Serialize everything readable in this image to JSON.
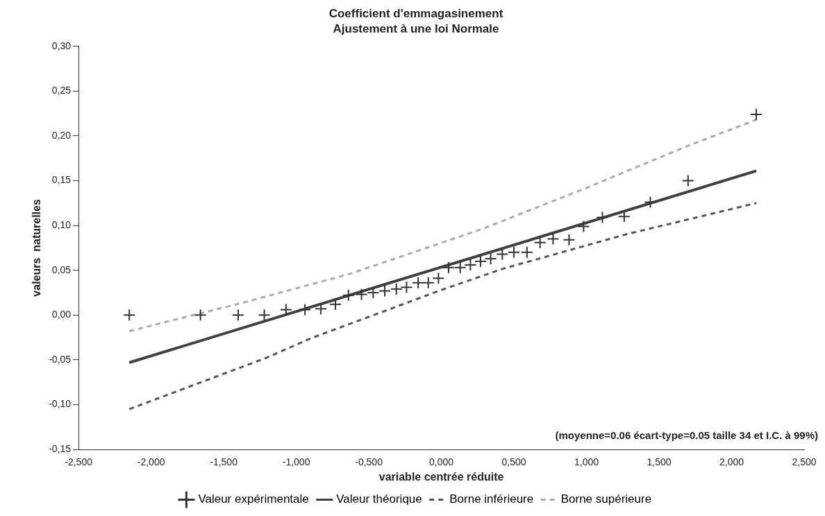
{
  "chart_data": {
    "type": "scatter",
    "title": "Coefficient d'emmagasinement",
    "subtitle": "Ajustement à une loi Normale",
    "xlabel": "variable centrée réduite",
    "ylabel": "valeurs  naturelles",
    "annotations": [
      "(moyenne=0.06 écart-type=0.05 taille 34 et I.C. à 99%)"
    ],
    "xlim": [
      -2.5,
      2.5
    ],
    "ylim": [
      -0.15,
      0.3
    ],
    "xticks": [
      {
        "value": -2.5,
        "label": "-2,500"
      },
      {
        "value": -2,
        "label": "-2,000"
      },
      {
        "value": -1.5,
        "label": "-1,500"
      },
      {
        "value": -1,
        "label": "-1,000"
      },
      {
        "value": -0.5,
        "label": "-0,500"
      },
      {
        "value": 0,
        "label": "0,000"
      },
      {
        "value": 0.5,
        "label": "0,500"
      },
      {
        "value": 1,
        "label": "1,000"
      },
      {
        "value": 1.5,
        "label": "1,500"
      },
      {
        "value": 2,
        "label": "2,000"
      },
      {
        "value": 2.5,
        "label": "2,500"
      }
    ],
    "yticks": [
      {
        "value": -0.15,
        "label": "-0,15"
      },
      {
        "value": -0.1,
        "label": "-0,10"
      },
      {
        "value": -0.05,
        "label": "-0,05"
      },
      {
        "value": 0,
        "label": "0,00"
      },
      {
        "value": 0.05,
        "label": "0,05"
      },
      {
        "value": 0.1,
        "label": "0,10"
      },
      {
        "value": 0.15,
        "label": "0,15"
      },
      {
        "value": 0.2,
        "label": "0,20"
      },
      {
        "value": 0.25,
        "label": "0,25"
      },
      {
        "value": 0.3,
        "label": "0,30"
      }
    ],
    "grid": false,
    "legend": "bottom",
    "series": [
      {
        "name": "Valeur expérimentale",
        "marker": "cross",
        "color": "#333333",
        "x": [
          -2.15,
          -1.66,
          -1.4,
          -1.22,
          -1.07,
          -0.94,
          -0.83,
          -0.73,
          -0.64,
          -0.55,
          -0.47,
          -0.39,
          -0.31,
          -0.24,
          -0.16,
          -0.09,
          -0.02,
          0.05,
          0.13,
          0.2,
          0.27,
          0.34,
          0.42,
          0.5,
          0.59,
          0.68,
          0.77,
          0.88,
          0.98,
          1.11,
          1.26,
          1.44,
          1.7,
          2.17
        ],
        "values": [
          0,
          0,
          0,
          0,
          0.006,
          0.006,
          0.007,
          0.012,
          0.022,
          0.023,
          0.025,
          0.027,
          0.029,
          0.031,
          0.036,
          0.036,
          0.041,
          0.053,
          0.053,
          0.056,
          0.06,
          0.063,
          0.068,
          0.07,
          0.07,
          0.081,
          0.085,
          0.084,
          0.099,
          0.109,
          0.11,
          0.126,
          0.15,
          0.224
        ]
      },
      {
        "name": "Valeur théorique",
        "type": "line",
        "marker": "none",
        "line_style": "solid",
        "color": "#404040",
        "x": [
          -2.15,
          2.17
        ],
        "values": [
          -0.053,
          0.161
        ]
      },
      {
        "name": "Borne inférieure",
        "type": "line",
        "marker": "none",
        "line_style": "dashed",
        "color": "#555555",
        "x": [
          -2.15,
          -1.21,
          -0.9,
          0,
          0.43,
          1.27,
          2.17
        ],
        "values": [
          -0.105,
          -0.048,
          -0.026,
          0.028,
          0.052,
          0.09,
          0.125
        ]
      },
      {
        "name": "Borne supérieure",
        "type": "line",
        "marker": "none",
        "line_style": "dashed",
        "color": "#aaaaaa",
        "x": [
          -2.15,
          -1.34,
          -0.63,
          0.28,
          0.97,
          1.7,
          2.17
        ],
        "values": [
          -0.018,
          0.015,
          0.046,
          0.096,
          0.14,
          0.189,
          0.218
        ]
      }
    ]
  }
}
